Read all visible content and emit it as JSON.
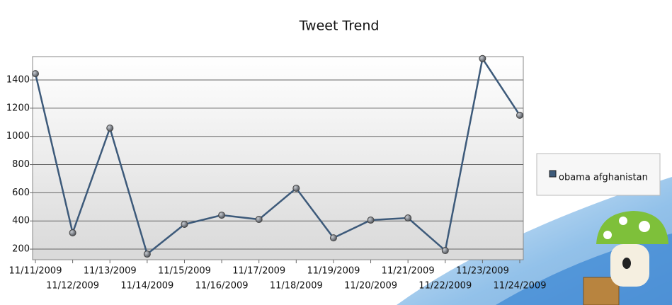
{
  "chart_data": {
    "type": "line",
    "title": "Tweet Trend",
    "categories": [
      "11/11/2009",
      "11/12/2009",
      "11/13/2009",
      "11/14/2009",
      "11/15/2009",
      "11/16/2009",
      "11/17/2009",
      "11/18/2009",
      "11/19/2009",
      "11/20/2009",
      "11/21/2009",
      "11/22/2009",
      "11/23/2009",
      "11/24/2009"
    ],
    "series": [
      {
        "name": "obama afghanistan",
        "color": "#3d5a7a",
        "values": [
          1445,
          316,
          1059,
          165,
          376,
          441,
          411,
          632,
          280,
          406,
          421,
          190,
          1552,
          1150
        ]
      }
    ],
    "ylim": [
      125,
      1566
    ],
    "yticks": [
      200,
      400,
      600,
      800,
      1000,
      1200,
      1400
    ],
    "grid": true,
    "legend": "right"
  }
}
